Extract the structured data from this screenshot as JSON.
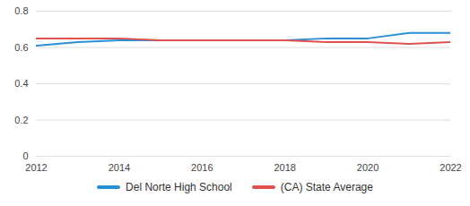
{
  "chart_data": {
    "type": "line",
    "x": [
      2012,
      2013,
      2014,
      2015,
      2016,
      2017,
      2018,
      2019,
      2020,
      2021,
      2022
    ],
    "series": [
      {
        "name": "Del Norte High School",
        "color": "#2b8fd6",
        "values": [
          0.61,
          0.63,
          0.64,
          0.64,
          0.64,
          0.64,
          0.64,
          0.65,
          0.65,
          0.68,
          0.68
        ]
      },
      {
        "name": "(CA) State Average",
        "color": "#e0524e",
        "values": [
          0.65,
          0.65,
          0.65,
          0.64,
          0.64,
          0.64,
          0.64,
          0.63,
          0.63,
          0.62,
          0.63
        ]
      }
    ],
    "xlim": [
      2012,
      2022
    ],
    "xticks": [
      2012,
      2014,
      2016,
      2018,
      2020,
      2022
    ],
    "ylim": [
      0,
      0.8
    ],
    "yticks": [
      0,
      0.2,
      0.4,
      0.6,
      0.8
    ],
    "grid": true,
    "legend": "bottom"
  }
}
